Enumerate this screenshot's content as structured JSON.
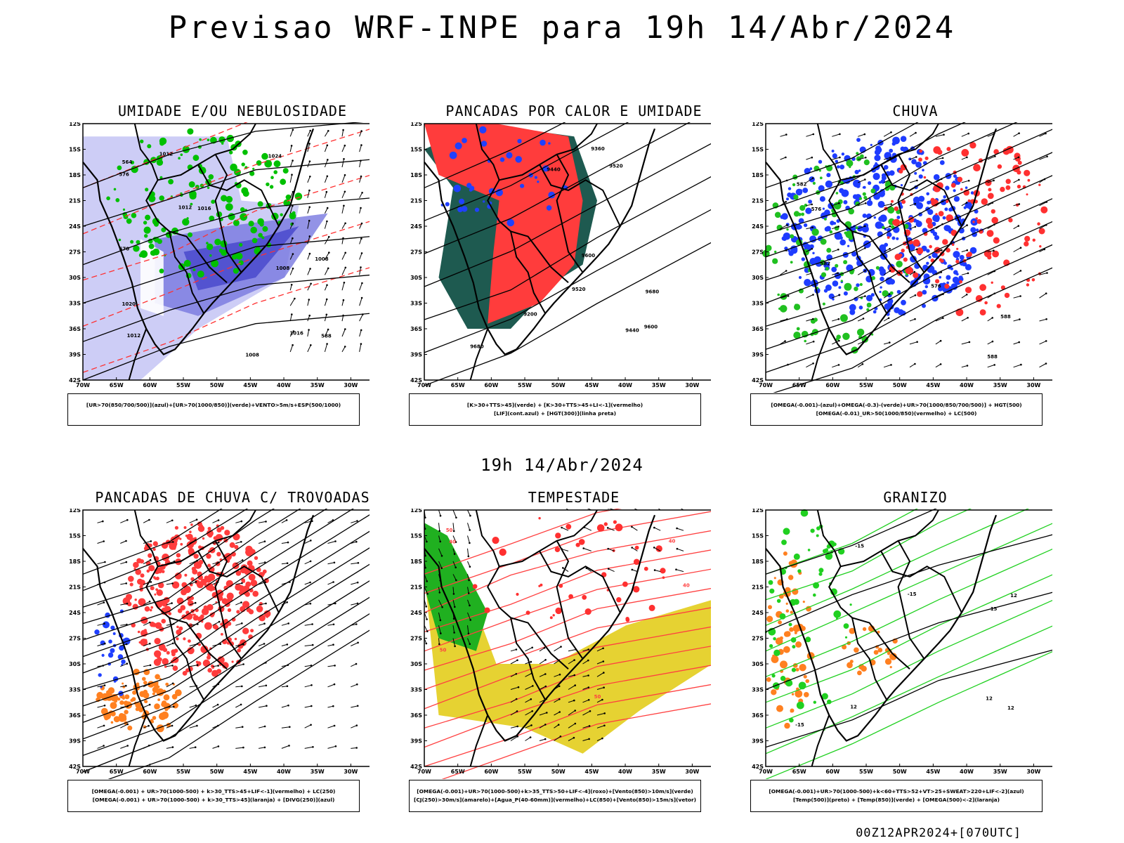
{
  "title": "Previsao WRF-INPE  para 19h 14/Abr/2024",
  "mid_label": "19h 14/Abr/2024",
  "footer": "00Z12APR2024+[070UTC]",
  "axes": {
    "lat_labels": [
      "12S",
      "15S",
      "18S",
      "21S",
      "24S",
      "27S",
      "30S",
      "33S",
      "36S",
      "39S",
      "42S"
    ],
    "lon_labels": [
      "70W",
      "65W",
      "60W",
      "55W",
      "50W",
      "45W",
      "40W",
      "35W",
      "30W"
    ]
  },
  "panels": [
    {
      "title": "UMIDADE E/OU NEBULOSIDADE",
      "legend": [
        "[UR>70(850/700/500)](azul)+[UR>70(1000/850)](verde)+VENTO>5m/s+ESP(500/1000)"
      ],
      "fill_colors": [
        "#c8c8f5",
        "#7878e0",
        "#3c3cc8"
      ],
      "contour_colors": [
        "#00c000",
        "#ff3030",
        "#000000"
      ],
      "labels": [
        "1008",
        "1008",
        "1012",
        "1012",
        "1016",
        "1016",
        "1020",
        "1024",
        "1012",
        "1008",
        "576",
        "570",
        "564",
        "588"
      ]
    },
    {
      "title": "PANCADAS POR CALOR E UMIDADE",
      "legend": [
        "[K>30+TTS>45](verde) + [K>30+TTS>45+LI<-1](vermelho)",
        "[LIF](cont.azul) + [HGT(300)](linha preta)"
      ],
      "fill_colors": [
        "#ff3c3c",
        "#1e5a50"
      ],
      "contour_colors": [
        "#2040ff",
        "#000000"
      ],
      "labels": [
        "9680",
        "9680",
        "9600",
        "9520",
        "9440",
        "9360",
        "9600",
        "9520",
        "9440",
        "9200"
      ]
    },
    {
      "title": "CHUVA",
      "legend": [
        "[OMEGA(-0.001)-(azul)+OMEGA(-0.3)-(verde)+UR>70(1000/850/700/500)] + HGT(500)",
        "[OMEGA(-0.01)_UR>50(1000/850)(vermelho) + LC(500)"
      ],
      "fill_colors": [
        "#1e3cff",
        "#20c020",
        "#ff3030"
      ],
      "contour_colors": [
        "#000000"
      ],
      "labels": [
        "588",
        "582",
        "576",
        "582",
        "588",
        "576"
      ]
    },
    {
      "title": "PANCADAS DE CHUVA C/ TROVOADAS",
      "legend": [
        "[OMEGA(-0.001) + UR>70(1000-500) + k>30_TTS>45+LIF<-1](vermelho) + LC(250)",
        "[OMEGA(-0.001) + UR>70(1000-500) + k>30_TTS>45](laranja) + [DIVG(250)](azul)"
      ],
      "fill_colors": [
        "#ff3c3c",
        "#ff8020",
        "#2040ff"
      ],
      "contour_colors": [
        "#000000"
      ],
      "labels": []
    },
    {
      "title": "TEMPESTADE",
      "legend": [
        "[OMEGA(-0.001)+UR>70(1000-500)+k>35_TTS>50+LIF<-4](roxo)+[Vento(850)>10m/s](verde)",
        "[CJ(250)>30m/s](amarelo)+[Agua_P(40-60mm)](vermelho)+LC(850)+[Vento(850)>15m/s](vetor)"
      ],
      "fill_colors": [
        "#e6d232",
        "#20b020",
        "#ff3030"
      ],
      "contour_colors": [
        "#ff4040"
      ],
      "labels": [
        "40",
        "50",
        "50",
        "40",
        "40",
        "50"
      ]
    },
    {
      "title": "GRANIZO",
      "legend": [
        "[OMEGA(-0.001)+UR>70(1000-500)+k<60+TTS>52+VT>25+SWEAT>220+LIF<-2](azul)",
        "[Temp(500)](preto) + [Temp(850)](verde) + [OMEGA(500)<-2](laranja)"
      ],
      "fill_colors": [
        "#ff8020"
      ],
      "contour_colors": [
        "#20d020",
        "#000000"
      ],
      "labels": [
        "12",
        "12",
        "12",
        "-15",
        "-15",
        "-15",
        "15",
        "12"
      ]
    }
  ]
}
